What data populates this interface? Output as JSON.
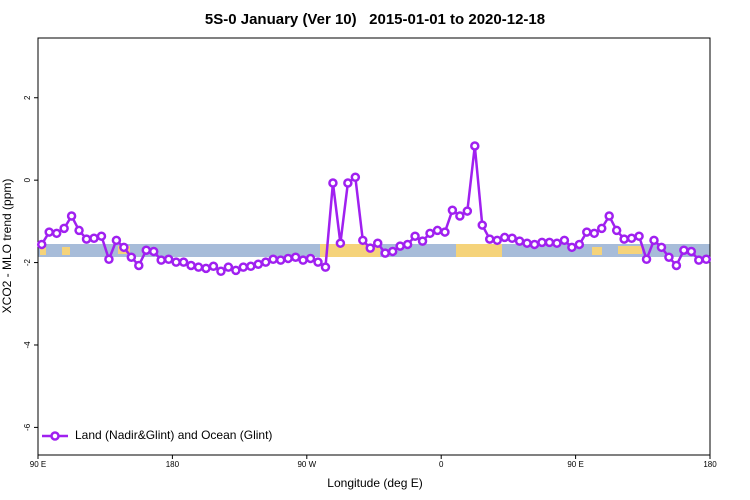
{
  "chart_data": {
    "type": "line",
    "title": "5S-0 January (Ver 10)   2015-01-01 to 2020-12-18",
    "x_label": "Longitude (deg E)",
    "y_label": "XCO2 - MLO trend (ppm)",
    "xlim": [
      90,
      540
    ],
    "xticks": [
      {
        "value": 90,
        "label": "90 E"
      },
      180,
      {
        "value": 270,
        "label": "90 W"
      },
      {
        "value": 360,
        "label": "0"
      },
      {
        "value": 450,
        "label": "90 E"
      },
      {
        "value": 540,
        "label": "180"
      }
    ],
    "ylim": [
      -6.67,
      3.45
    ],
    "yticks": [
      -6,
      -4,
      -2,
      0,
      2
    ],
    "legend": "bottom-left",
    "x": [
      92.5,
      97.5,
      102.5,
      107.5,
      112.5,
      117.5,
      122.5,
      127.5,
      132.5,
      137.5,
      142.5,
      147.5,
      152.5,
      157.5,
      162.5,
      167.5,
      172.5,
      177.5,
      182.5,
      187.5,
      192.5,
      197.5,
      202.5,
      207.5,
      212.5,
      217.5,
      222.5,
      227.5,
      232.5,
      237.5,
      242.5,
      247.5,
      252.5,
      257.5,
      262.5,
      267.5,
      272.5,
      277.5,
      282.5,
      287.5,
      292.5,
      297.5,
      302.5,
      307.5,
      312.5,
      317.5,
      322.5,
      327.5,
      332.5,
      337.5,
      342.5,
      347.5,
      352.5,
      357.5,
      362.5,
      367.5,
      372.5,
      377.5,
      382.5,
      387.5,
      392.5,
      397.5,
      402.5,
      407.5,
      412.5,
      417.5,
      422.5,
      427.5,
      432.5,
      437.5,
      442.5,
      447.5,
      452.5,
      457.5,
      462.5,
      467.5,
      472.5,
      477.5,
      482.5,
      487.5,
      492.5,
      497.5,
      502.5,
      507.5,
      512.5,
      517.5,
      522.5,
      527.5,
      532.5,
      537.5
    ],
    "series": [
      {
        "name": "Land (Nadir&Glint) and Ocean (Glint)",
        "color": "#a020f0",
        "values": [
          -1.56,
          -1.26,
          -1.29,
          -1.17,
          -0.87,
          -1.22,
          -1.43,
          -1.41,
          -1.36,
          -1.92,
          -1.46,
          -1.63,
          -1.87,
          -2.07,
          -1.7,
          -1.73,
          -1.94,
          -1.92,
          -1.99,
          -1.99,
          -2.07,
          -2.11,
          -2.14,
          -2.09,
          -2.21,
          -2.11,
          -2.19,
          -2.11,
          -2.09,
          -2.04,
          -1.99,
          -1.92,
          -1.94,
          -1.9,
          -1.87,
          -1.94,
          -1.9,
          -1.99,
          -2.11,
          -0.07,
          -1.53,
          -0.07,
          0.07,
          -1.46,
          -1.65,
          -1.53,
          -1.77,
          -1.73,
          -1.6,
          -1.56,
          -1.36,
          -1.48,
          -1.29,
          -1.22,
          -1.26,
          -0.73,
          -0.87,
          -0.75,
          0.83,
          -1.09,
          -1.43,
          -1.46,
          -1.39,
          -1.41,
          -1.48,
          -1.53,
          -1.56,
          -1.51,
          -1.51,
          -1.53,
          -1.46,
          -1.63,
          -1.56,
          -1.26,
          -1.29,
          -1.17,
          -0.87,
          -1.22,
          -1.43,
          -1.41,
          -1.36,
          -1.92,
          -1.46,
          -1.63,
          -1.87,
          -2.07,
          -1.7,
          -1.73,
          -1.94,
          -1.92
        ]
      }
    ]
  }
}
